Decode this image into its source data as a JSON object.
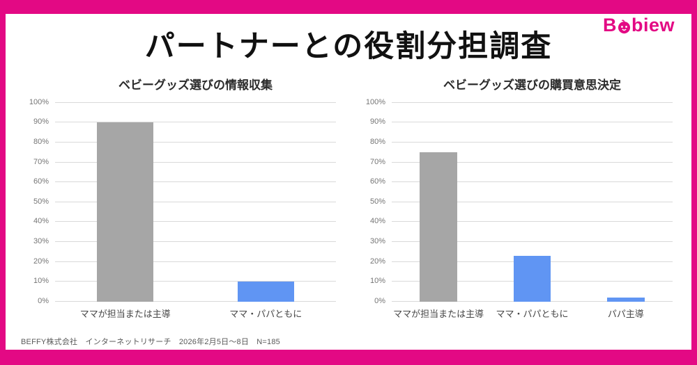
{
  "colors": {
    "accent_pink": "#e30984",
    "bar_gray": "#a6a6a6",
    "bar_blue": "#6095f3",
    "gridline": "#d9d9d9"
  },
  "logo": {
    "prefix": "B",
    "suffix": "biew",
    "full_name": "Babiew"
  },
  "header": {
    "title": "パートナーとの役割分担調査"
  },
  "footer": {
    "source": "BEFFY株式会社　インターネットリサーチ　2026年2月5日～8日　N=185"
  },
  "chart_data": [
    {
      "type": "bar",
      "title": "ベビーグッズ選びの情報収集",
      "categories": [
        "ママが担当または主導",
        "ママ・パパともに"
      ],
      "values": [
        90,
        10
      ],
      "bar_colors": [
        "#a6a6a6",
        "#6095f3"
      ],
      "value_suffix": "%",
      "xlabel": "",
      "ylabel": "",
      "ylim": [
        0,
        100
      ],
      "ytick_step": 10,
      "grid": true,
      "legend": false
    },
    {
      "type": "bar",
      "title": "ベビーグッズ選びの購買意思決定",
      "categories": [
        "ママが担当または主導",
        "ママ・パパともに",
        "パパ主導"
      ],
      "values": [
        75,
        23,
        2
      ],
      "bar_colors": [
        "#a6a6a6",
        "#6095f3",
        "#6095f3"
      ],
      "value_suffix": "%",
      "xlabel": "",
      "ylabel": "",
      "ylim": [
        0,
        100
      ],
      "ytick_step": 10,
      "grid": true,
      "legend": false
    }
  ]
}
